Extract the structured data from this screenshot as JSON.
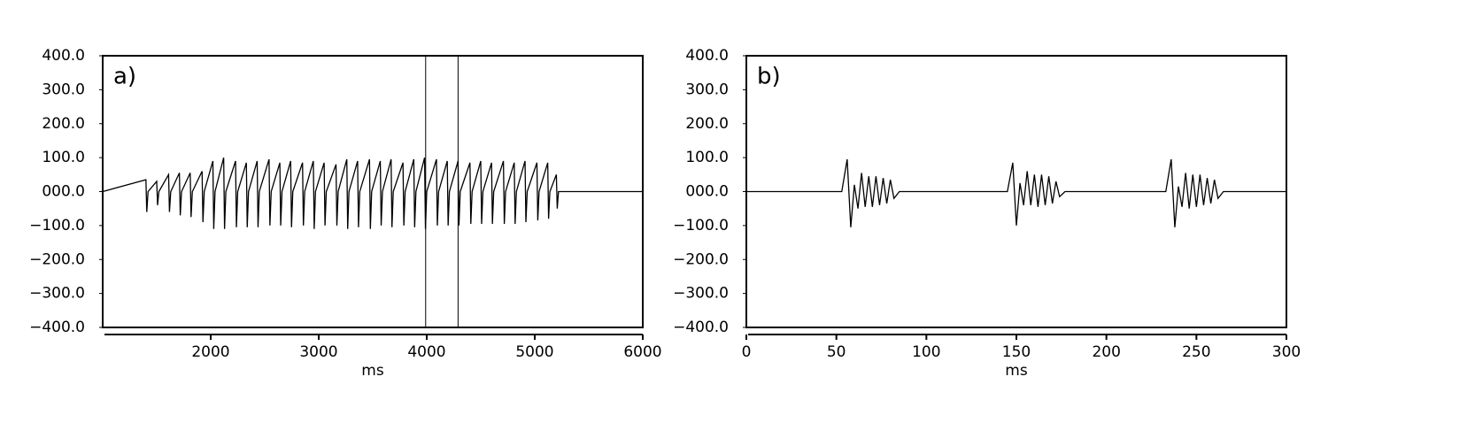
{
  "chart_data": [
    {
      "type": "line",
      "panel_label": "a)",
      "xlabel": "ms",
      "color": "#000000",
      "xlim": [
        1000,
        6000
      ],
      "xticks": [
        2000,
        3000,
        4000,
        5000,
        6000
      ],
      "ylim": [
        -400,
        400
      ],
      "yticks": [
        {
          "value": 400,
          "label": "400.0"
        },
        {
          "value": 300,
          "label": "300.0"
        },
        {
          "value": 200,
          "label": "200.0"
        },
        {
          "value": 100,
          "label": "100.0"
        },
        {
          "value": 0,
          "label": "000.0"
        },
        {
          "value": -100,
          "label": "−100.0"
        },
        {
          "value": -200,
          "label": "−200.0"
        },
        {
          "value": -300,
          "label": "−300.0"
        },
        {
          "value": -400,
          "label": "−400.0"
        }
      ],
      "cursors": [
        3990,
        4290
      ],
      "x": [
        1000,
        1400,
        1408,
        1420,
        1500,
        1508,
        1520,
        1610,
        1618,
        1630,
        1710,
        1718,
        1730,
        1810,
        1818,
        1830,
        1920,
        1928,
        1940,
        2020,
        2028,
        2040,
        2120,
        2128,
        2140,
        2230,
        2238,
        2250,
        2330,
        2338,
        2350,
        2430,
        2438,
        2450,
        2540,
        2548,
        2560,
        2640,
        2648,
        2660,
        2740,
        2748,
        2760,
        2850,
        2858,
        2870,
        2950,
        2958,
        2970,
        3050,
        3058,
        3070,
        3160,
        3168,
        3180,
        3260,
        3268,
        3280,
        3360,
        3368,
        3380,
        3470,
        3478,
        3490,
        3570,
        3578,
        3590,
        3670,
        3678,
        3690,
        3780,
        3788,
        3800,
        3880,
        3888,
        3900,
        3980,
        3988,
        4000,
        4090,
        4098,
        4110,
        4190,
        4198,
        4210,
        4290,
        4298,
        4310,
        4400,
        4408,
        4420,
        4500,
        4508,
        4520,
        4600,
        4608,
        4620,
        4710,
        4718,
        4730,
        4810,
        4818,
        4830,
        4910,
        4918,
        4930,
        5020,
        5028,
        5040,
        5120,
        5128,
        5140,
        5200,
        5208,
        5220,
        6000
      ],
      "values": [
        0,
        35,
        -60,
        0,
        30,
        -40,
        0,
        50,
        -60,
        0,
        55,
        -70,
        0,
        55,
        -75,
        0,
        60,
        -90,
        0,
        90,
        -110,
        0,
        100,
        -110,
        0,
        90,
        -105,
        0,
        85,
        -105,
        0,
        90,
        -105,
        0,
        95,
        -100,
        0,
        85,
        -100,
        0,
        90,
        -105,
        0,
        85,
        -100,
        0,
        90,
        -110,
        0,
        85,
        -100,
        0,
        80,
        -100,
        0,
        95,
        -110,
        0,
        90,
        -105,
        0,
        95,
        -110,
        0,
        90,
        -100,
        0,
        95,
        -105,
        0,
        85,
        -100,
        0,
        95,
        -105,
        0,
        100,
        -110,
        0,
        95,
        -100,
        0,
        90,
        -100,
        0,
        90,
        -100,
        0,
        85,
        -95,
        0,
        90,
        -95,
        0,
        85,
        -95,
        0,
        90,
        -95,
        0,
        85,
        -95,
        0,
        90,
        -90,
        0,
        85,
        -85,
        0,
        85,
        -80,
        0,
        50,
        -50,
        0,
        0
      ]
    },
    {
      "type": "line",
      "panel_label": "b)",
      "xlabel": "ms",
      "color": "#000000",
      "xlim": [
        0,
        300
      ],
      "xticks": [
        0,
        50,
        100,
        150,
        200,
        250,
        300
      ],
      "ylim": [
        -400,
        400
      ],
      "yticks": [
        {
          "value": 400,
          "label": "400.0"
        },
        {
          "value": 300,
          "label": "300.0"
        },
        {
          "value": 200,
          "label": "200.0"
        },
        {
          "value": 100,
          "label": "100.0"
        },
        {
          "value": 0,
          "label": "000.0"
        },
        {
          "value": -100,
          "label": "−100.0"
        },
        {
          "value": -200,
          "label": "−200.0"
        },
        {
          "value": -300,
          "label": "−300.0"
        },
        {
          "value": -400,
          "label": "−400.0"
        }
      ],
      "x": [
        0,
        53,
        56,
        58,
        60,
        62,
        64,
        66,
        68,
        70,
        72,
        74,
        76,
        78,
        80,
        82,
        85,
        145,
        148,
        150,
        152,
        154,
        156,
        158,
        160,
        162,
        164,
        166,
        168,
        170,
        172,
        174,
        177,
        233,
        236,
        238,
        240,
        242,
        244,
        246,
        248,
        250,
        252,
        254,
        256,
        258,
        260,
        262,
        265,
        300
      ],
      "values": [
        0,
        0,
        95,
        -105,
        20,
        -50,
        55,
        -45,
        45,
        -45,
        45,
        -40,
        40,
        -35,
        35,
        -20,
        0,
        0,
        85,
        -100,
        25,
        -40,
        60,
        -40,
        50,
        -45,
        50,
        -40,
        45,
        -35,
        30,
        -15,
        0,
        0,
        95,
        -105,
        15,
        -45,
        55,
        -50,
        50,
        -45,
        50,
        -40,
        40,
        -35,
        35,
        -20,
        0,
        0
      ]
    }
  ]
}
